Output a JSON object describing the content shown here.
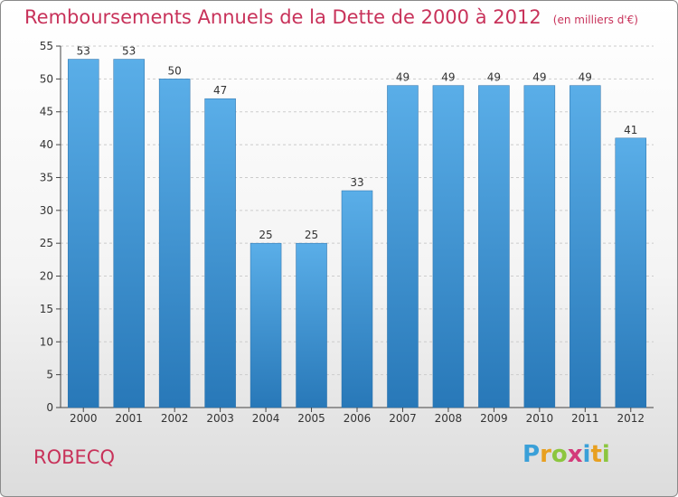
{
  "title": "Remboursements Annuels de la Dette de 2000 à 2012",
  "subtitle": "(en milliers d'€)",
  "commune": "ROBECQ",
  "logo": {
    "letters": [
      "P",
      "r",
      "o",
      "x",
      "i",
      "t",
      "i"
    ],
    "colors": [
      "#3aa0d8",
      "#e8a020",
      "#8cc63f",
      "#d33a7a",
      "#3aa0d8",
      "#e8a020",
      "#8cc63f"
    ]
  },
  "colors": {
    "title": "#c8325a",
    "bar_top": "#5aaee8",
    "bar_bottom": "#2878b8",
    "grid": "#cccccc"
  },
  "chart_data": {
    "type": "bar",
    "title": "Remboursements Annuels de la Dette de 2000 à 2012",
    "subtitle": "(en milliers d'€)",
    "categories": [
      "2000",
      "2001",
      "2002",
      "2003",
      "2004",
      "2005",
      "2006",
      "2007",
      "2008",
      "2009",
      "2010",
      "2011",
      "2012"
    ],
    "values": [
      53,
      53,
      50,
      47,
      25,
      25,
      33,
      49,
      49,
      49,
      49,
      49,
      41
    ],
    "ylim": [
      0,
      55
    ],
    "yticks": [
      0,
      5,
      10,
      15,
      20,
      25,
      30,
      35,
      40,
      45,
      50,
      55
    ],
    "grid": "horizontal dashed",
    "xlabel": "",
    "ylabel": ""
  }
}
